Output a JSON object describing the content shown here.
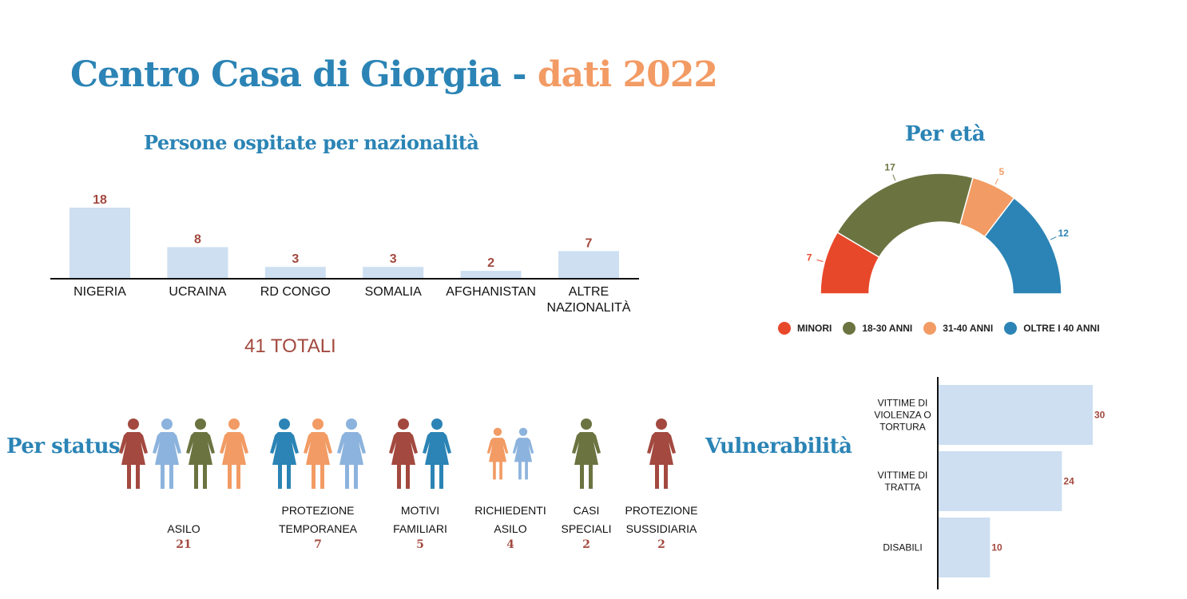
{
  "header": {
    "title_main": "Centro Casa di Giorgia",
    "title_sep": "-",
    "title_year": "dati 2022"
  },
  "colors": {
    "blue": "#2b84b5",
    "orange": "#f29b64",
    "red": "#e8482a",
    "olive": "#6b7440",
    "brown": "#a3493f",
    "lightblue": "#8cb3dd",
    "barfill": "#cddff1"
  },
  "chart_data": [
    {
      "type": "bar",
      "title": "Persone ospitate per nazionalità",
      "categories": [
        "NIGERIA",
        "UCRAINA",
        "RD CONGO",
        "SOMALIA",
        "AFGHANISTAN",
        "ALTRE NAZIONALITÀ"
      ],
      "values": [
        18,
        8,
        3,
        3,
        2,
        7
      ],
      "ylim": [
        0,
        18
      ],
      "grid": false,
      "totals_label": "41 TOTALI"
    },
    {
      "type": "pie",
      "title": "Per età",
      "categories": [
        "MINORI",
        "18-30 ANNI",
        "31-40 ANNI",
        "OLTRE I 40 ANNI"
      ],
      "values": [
        7,
        17,
        5,
        12
      ],
      "colors": [
        "#e8482a",
        "#6b7440",
        "#f29b64",
        "#2b84b5"
      ],
      "legend": "bottom"
    },
    {
      "type": "bar",
      "title": "Vulnerabilità",
      "orientation": "horizontal",
      "categories": [
        "VITTIME DI VIOLENZA O TORTURA",
        "VITTIME DI TRATTA",
        "DISABILI"
      ],
      "values": [
        30,
        24,
        10
      ],
      "xlim": [
        0,
        30
      ],
      "grid": false
    }
  ],
  "status": {
    "title": "Per status",
    "groups": [
      {
        "label": "ASILO",
        "count": "21",
        "figures": [
          "brown",
          "lightblue",
          "olive",
          "orange"
        ]
      },
      {
        "label": "PROTEZIONE\nTEMPORANEA",
        "count": "7",
        "figures": [
          "blue",
          "orange",
          "lightblue"
        ]
      },
      {
        "label": "MOTIVI\nFAMILIARI",
        "count": "5",
        "figures": [
          "brown",
          "blue"
        ]
      },
      {
        "label": "RICHIEDENTI\nASILO",
        "count": "4",
        "figures": [
          "orange",
          "lightblue"
        ]
      },
      {
        "label": "CASI\nSPECIALI",
        "count": "2",
        "figures": [
          "olive"
        ]
      },
      {
        "label": "PROTEZIONE\nSUSSIDIARIA",
        "count": "2",
        "figures": [
          "brown"
        ]
      }
    ]
  }
}
